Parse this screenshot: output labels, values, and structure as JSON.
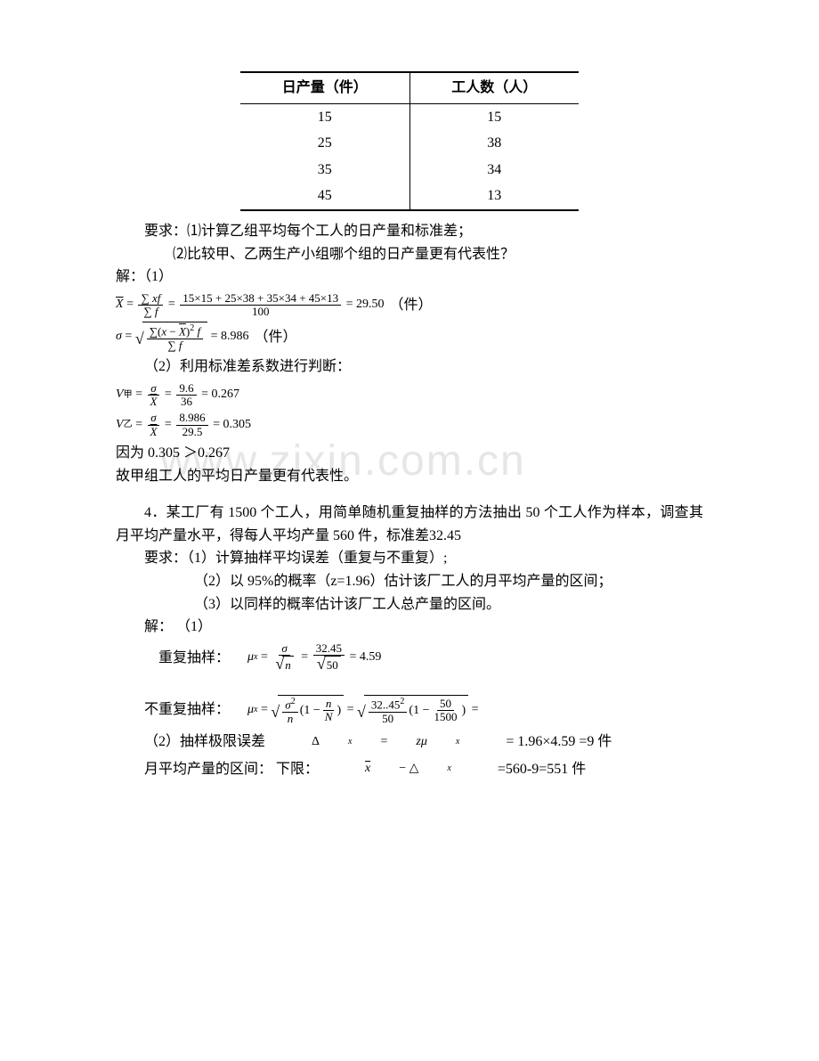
{
  "table": {
    "headers": [
      "日产量（件）",
      "工人数（人）"
    ],
    "rows": [
      [
        "15",
        "15"
      ],
      [
        "25",
        "38"
      ],
      [
        "35",
        "34"
      ],
      [
        "45",
        "13"
      ]
    ]
  },
  "req": {
    "line1": "要求：⑴计算乙组平均每个工人的日产量和标准差；",
    "line2": "⑵比较甲、乙两生产小组哪个组的日产量更有代表性？"
  },
  "sol1": {
    "label": "解：（1）",
    "mean_num": "15×15 + 25×38 + 35×34 + 45×13",
    "mean_den": "100",
    "mean_val": "= 29.50",
    "mean_unit": "（件）",
    "sigma_val": "= 8.986",
    "sigma_unit": "（件）",
    "cv_label": "（2）利用标准差系数进行判断：",
    "cv1_num": "9.6",
    "cv1_den": "36",
    "cv1_val": "= 0.267",
    "cv2_num": "8.986",
    "cv2_den": "29.5",
    "cv2_val": "= 0.305",
    "compare": "因为 0.305 ＞0.267",
    "conclusion": "故甲组工人的平均日产量更有代表性。"
  },
  "q4": {
    "p1": "4．某工厂有 1500 个工人，用简单随机重复抽样的方法抽出 50 个工人作为样本，调查其月平均产量水平，得每人平均产量 560 件，标准差32.45",
    "req1": "要求：（1）计算抽样平均误差（重复与不重复）;",
    "req2": "（2）以 95%的概率（z=1.96）估计该厂工人的月平均产量的区间；",
    "req3": "（3）以同样的概率估计该厂工人总产量的区间。",
    "sol_label": "解：   （1）",
    "rep_label": "重复抽样：",
    "rep_num": "32.45",
    "rep_den": "50",
    "rep_val": "= 4.59",
    "nrep_label": "不重复抽样：",
    "nrep_var": "32..45",
    "nrep_n": "50",
    "nrep_nn": "50",
    "nrep_N": "1500",
    "limit_label": "（2）抽样极限误差",
    "limit_eq": "= 1.96×4.59 =9 件",
    "interval_label": "月平均产量的区间：   下限：",
    "interval_val": "=560-9=551 件"
  },
  "watermark": "www.zixin.com.cn"
}
